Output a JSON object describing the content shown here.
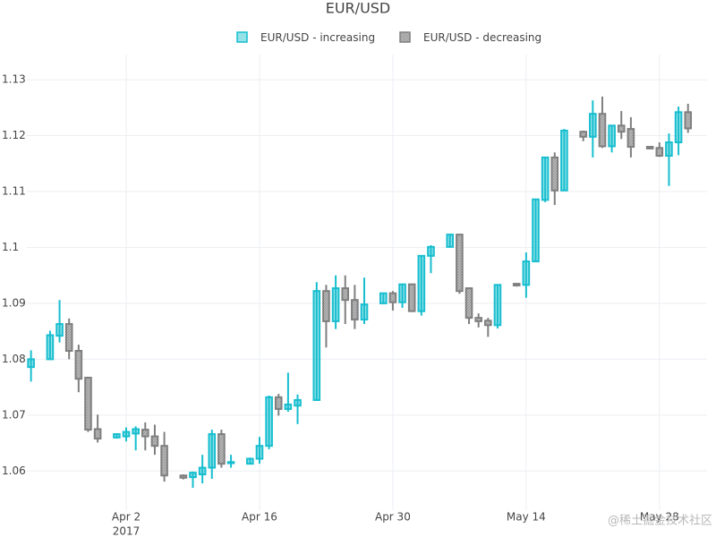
{
  "chart_data": {
    "type": "candlestick",
    "title": "EUR/USD",
    "increasing": {
      "name": "EUR/USD - increasing",
      "color": "#17becf"
    },
    "decreasing": {
      "name": "EUR/USD - decreasing",
      "color": "#7f7f7f"
    },
    "x": [
      "2017-03-23",
      "2017-03-25",
      "2017-03-26",
      "2017-03-27",
      "2017-03-28",
      "2017-03-29",
      "2017-03-30",
      "2017-04-01",
      "2017-04-02",
      "2017-04-03",
      "2017-04-04",
      "2017-04-05",
      "2017-04-06",
      "2017-04-08",
      "2017-04-09",
      "2017-04-10",
      "2017-04-11",
      "2017-04-12",
      "2017-04-13",
      "2017-04-15",
      "2017-04-16",
      "2017-04-17",
      "2017-04-18",
      "2017-04-19",
      "2017-04-20",
      "2017-04-22",
      "2017-04-23",
      "2017-04-24",
      "2017-04-25",
      "2017-04-26",
      "2017-04-27",
      "2017-04-29",
      "2017-04-30",
      "2017-05-01",
      "2017-05-02",
      "2017-05-03",
      "2017-05-04",
      "2017-05-06",
      "2017-05-07",
      "2017-05-08",
      "2017-05-09",
      "2017-05-10",
      "2017-05-11",
      "2017-05-13",
      "2017-05-14",
      "2017-05-15",
      "2017-05-16",
      "2017-05-17",
      "2017-05-18",
      "2017-05-20",
      "2017-05-21",
      "2017-05-22",
      "2017-05-23",
      "2017-05-24",
      "2017-05-25",
      "2017-05-27",
      "2017-05-28",
      "2017-05-29",
      "2017-05-30",
      "2017-05-31"
    ],
    "open": [
      1.0786,
      1.08,
      1.0842,
      1.0863,
      1.0815,
      1.0767,
      1.0675,
      1.066,
      1.0662,
      1.0667,
      1.0674,
      1.0662,
      1.0645,
      1.0592,
      1.0589,
      1.0594,
      1.0606,
      1.0666,
      1.0614,
      1.0613,
      1.0622,
      1.0645,
      1.0732,
      1.0711,
      1.0717,
      1.0727,
      1.0922,
      1.0868,
      1.0927,
      1.0906,
      1.0871,
      1.09,
      1.0918,
      1.0902,
      1.0934,
      1.0886,
      1.0985,
      1.1001,
      1.1023,
      1.0927,
      1.0874,
      1.0869,
      1.0861,
      1.0935,
      1.0933,
      1.0975,
      1.1085,
      1.1161,
      1.1102,
      1.1207,
      1.1198,
      1.1239,
      1.1181,
      1.1218,
      1.1212,
      1.118,
      1.1178,
      1.1164,
      1.1188,
      1.1242
    ],
    "high": [
      1.0816,
      1.0851,
      1.0906,
      1.0873,
      1.0826,
      1.0767,
      1.0701,
      1.0667,
      1.0678,
      1.068,
      1.0687,
      1.0683,
      1.067,
      1.0594,
      1.0599,
      1.0629,
      1.0674,
      1.0674,
      1.0629,
      1.0624,
      1.0661,
      1.0735,
      1.0738,
      1.0776,
      1.0737,
      1.0938,
      1.0933,
      1.095,
      1.095,
      1.0933,
      1.0946,
      1.0919,
      1.0922,
      1.0934,
      1.0934,
      1.0986,
      1.1004,
      1.1023,
      1.1023,
      1.0927,
      1.0882,
      1.0874,
      1.0933,
      1.0936,
      1.0991,
      1.1086,
      1.1162,
      1.117,
      1.1212,
      1.1209,
      1.1263,
      1.127,
      1.1218,
      1.1244,
      1.1233,
      1.1181,
      1.1188,
      1.1204,
      1.1252,
      1.1257
    ],
    "low": [
      1.076,
      1.08,
      1.083,
      1.08,
      1.0741,
      1.067,
      1.0651,
      1.0658,
      1.0653,
      1.0637,
      1.0637,
      1.0629,
      1.0581,
      1.0585,
      1.057,
      1.0578,
      1.0586,
      1.0606,
      1.0606,
      1.0613,
      1.0613,
      1.0639,
      1.0699,
      1.0706,
      1.0684,
      1.0727,
      1.0821,
      1.0854,
      1.0863,
      1.0854,
      1.0863,
      1.09,
      1.0887,
      1.0892,
      1.0886,
      1.0878,
      1.0954,
      1.1,
      1.0917,
      1.0863,
      1.0857,
      1.084,
      1.0855,
      1.093,
      1.091,
      1.0975,
      1.1081,
      1.1076,
      1.1102,
      1.119,
      1.1161,
      1.1178,
      1.117,
      1.1194,
      1.1161,
      1.1176,
      1.1162,
      1.111,
      1.1165,
      1.1205
    ],
    "close": [
      1.08,
      1.0843,
      1.0863,
      1.0815,
      1.0765,
      1.0674,
      1.0658,
      1.0666,
      1.067,
      1.0675,
      1.0662,
      1.0645,
      1.0592,
      1.0588,
      1.0597,
      1.0606,
      1.0666,
      1.0613,
      1.0616,
      1.0622,
      1.0645,
      1.0732,
      1.0711,
      1.0719,
      1.0727,
      1.0922,
      1.0868,
      1.0927,
      1.0906,
      1.0871,
      1.0898,
      1.0918,
      1.0902,
      1.0934,
      1.0886,
      1.0985,
      1.1001,
      1.1023,
      1.0922,
      1.0874,
      1.0868,
      1.0861,
      1.0933,
      1.0932,
      1.0975,
      1.1086,
      1.1161,
      1.1102,
      1.1209,
      1.1198,
      1.1239,
      1.1181,
      1.1218,
      1.1207,
      1.118,
      1.1177,
      1.1164,
      1.1188,
      1.1242,
      1.1213
    ],
    "xlim": [
      "2017-03-22",
      "2017-06-02"
    ],
    "xticks": [
      {
        "value": "2017-04-02",
        "label": "Apr 2"
      },
      {
        "value": "2017-04-16",
        "label": "Apr 16"
      },
      {
        "value": "2017-04-30",
        "label": "Apr 30"
      },
      {
        "value": "2017-05-14",
        "label": "May 14"
      },
      {
        "value": "2017-05-28",
        "label": "May 28"
      }
    ],
    "x_year_label": "2017",
    "ylim": [
      1.053,
      1.1345
    ],
    "yticks": [
      1.06,
      1.07,
      1.08,
      1.09,
      1.1,
      1.11,
      1.12,
      1.13
    ],
    "grid": true,
    "legend": "top",
    "watermark": "@稀土掘金技术社区"
  }
}
